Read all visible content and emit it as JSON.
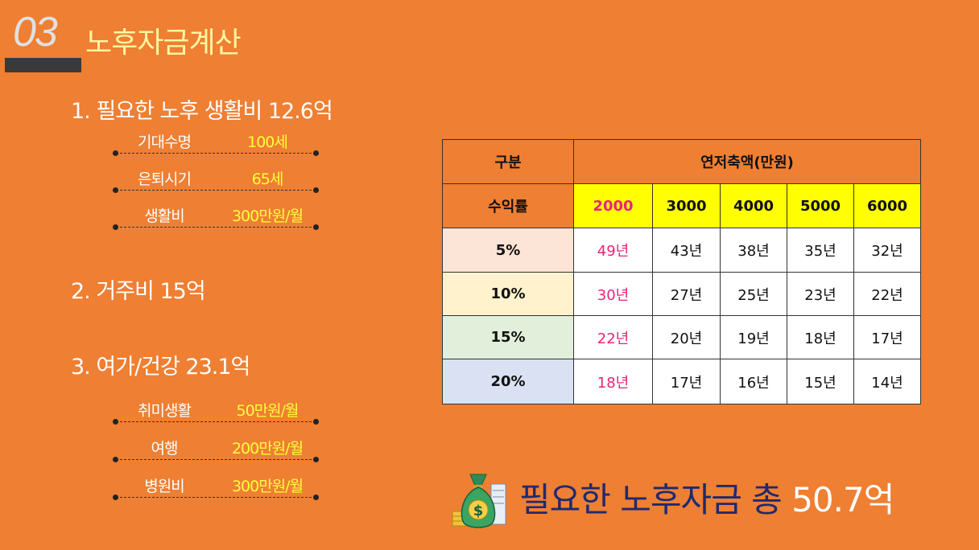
{
  "header": {
    "number": "03",
    "title": "노후자금계산"
  },
  "living": {
    "title": "1. 필요한 노후 생활비",
    "amount": "12.6억",
    "rows": [
      {
        "label": "기대수명",
        "value": "100세"
      },
      {
        "label": "은퇴시기",
        "value": "65세"
      },
      {
        "label": "생활비",
        "value": "300만원/월"
      }
    ]
  },
  "housing": {
    "title": "2. 거주비",
    "amount": "15억"
  },
  "leisure": {
    "title": "3. 여가/건강",
    "amount": "23.1억",
    "rows": [
      {
        "label": "취미생활",
        "value": "50만원/월"
      },
      {
        "label": "여행",
        "value": "200만원/월"
      },
      {
        "label": "병원비",
        "value": "300만원/월"
      }
    ]
  },
  "table": {
    "corner": "구분",
    "group_header": "연저축액(만원)",
    "row_header": "수익률",
    "columns": [
      "2000",
      "3000",
      "4000",
      "5000",
      "6000"
    ],
    "rows": [
      {
        "rate": "5%",
        "cells": [
          "49년",
          "43년",
          "38년",
          "35년",
          "32년"
        ]
      },
      {
        "rate": "10%",
        "cells": [
          "30년",
          "27년",
          "25년",
          "23년",
          "22년"
        ]
      },
      {
        "rate": "15%",
        "cells": [
          "22년",
          "20년",
          "19년",
          "18년",
          "17년"
        ]
      },
      {
        "rate": "20%",
        "cells": [
          "18년",
          "17년",
          "16년",
          "15년",
          "14년"
        ]
      }
    ]
  },
  "total": {
    "label": "필요한 노후자금 총",
    "amount": "50.7억"
  },
  "colors": {
    "background": "#ee7f33",
    "highlight": "#ffff00",
    "pink": "#e8247a",
    "navy": "#1f2a6e"
  },
  "icons": {
    "total": "money-bag-icon"
  }
}
